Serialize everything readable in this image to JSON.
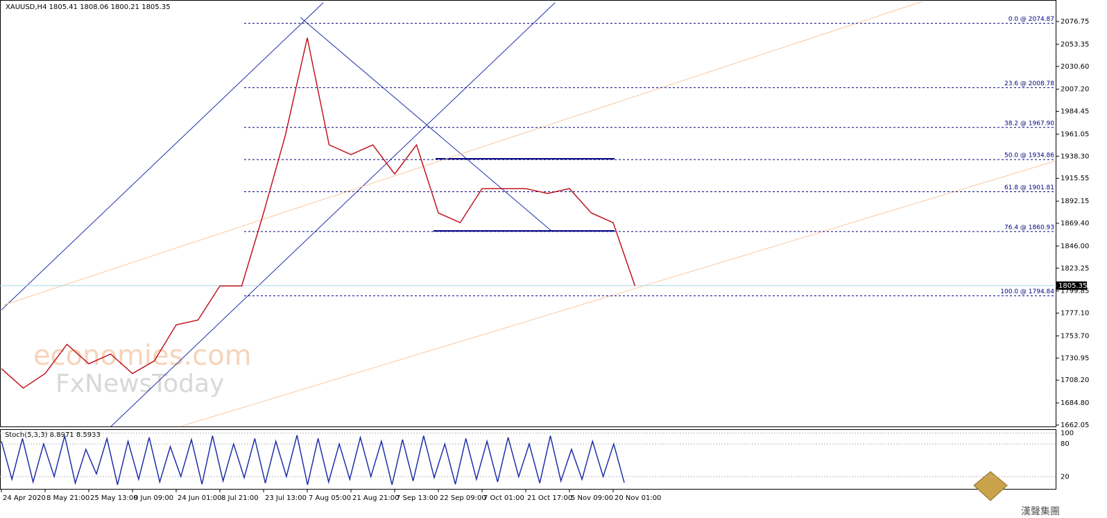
{
  "chart_data": [
    {
      "type": "line",
      "title": "XAUUSD,H4  1805.41 1808.06 1800.21 1805.35",
      "categories": [
        "24 Apr 2020",
        null,
        "8 May 21:00",
        null,
        "25 May 13:00",
        null,
        "9 Jun 09:00",
        null,
        "24 Jun 01:00",
        null,
        "8 Jul 21:00",
        null,
        "23 Jul 13:00",
        null,
        "7 Aug 05:00",
        null,
        "21 Aug 21:00",
        null,
        "7 Sep 13:00",
        null,
        "22 Sep 09:00",
        null,
        "7 Oct 01:00",
        null,
        "21 Oct 17:00",
        null,
        "5 Nov 09:00",
        null,
        "20 Nov 01:00",
        null
      ],
      "values": [
        1720,
        1700,
        1715,
        1745,
        1725,
        1735,
        1715,
        1728,
        1765,
        1770,
        1805,
        1805,
        1880,
        1960,
        2060,
        1950,
        1940,
        1950,
        1920,
        1950,
        1880,
        1870,
        1905,
        1905,
        1905,
        1900,
        1905,
        1880,
        1870,
        1805
      ],
      "color": "#c0141e",
      "ylim": [
        1660.6,
        2096.0
      ],
      "yticks": [
        2076.75,
        2053.35,
        {
          "value": 2030.6,
          "label": "2030.60"
        },
        {
          "value": 2007.2,
          "label": "2007.20"
        },
        1984.45,
        1961.05,
        {
          "value": 1938.3,
          "label": "1938.30"
        },
        1915.55,
        1892.15,
        {
          "value": 1869.4,
          "label": "1869.40"
        },
        {
          "value": 1846.0,
          "label": "1846.00"
        },
        1823.25,
        1799.85,
        {
          "value": 1777.1,
          "label": "1777.10"
        },
        {
          "value": 1753.7,
          "label": "1753.70"
        },
        1730.95,
        {
          "value": 1708.2,
          "label": "1708.20"
        },
        {
          "value": 1684.8,
          "label": "1684.80"
        },
        1662.05
      ],
      "fib_levels": [
        {
          "label": "0.0 @ 2074.87",
          "value": 2074.87
        },
        {
          "label": "23.6 @ 2008.78",
          "value": 2008.78
        },
        {
          "label": "38.2 @ 1967.90",
          "value": 1967.9
        },
        {
          "label": "50.0 @ 1934.86",
          "value": 1934.86
        },
        {
          "label": "61.8 @ 1901.81",
          "value": 1901.81
        },
        {
          "label": "76.4 @ 1860.93",
          "value": 1860.93
        },
        {
          "label": "100.0 @ 1794.84",
          "value": 1794.84
        }
      ],
      "current_price": 1805.35
    },
    {
      "type": "line",
      "title": "Stoch(5,3,3) 8.8971 8.5933",
      "values": [
        85,
        15,
        90,
        10,
        80,
        20,
        95,
        8,
        70,
        25,
        90,
        5,
        85,
        15,
        92,
        10,
        75,
        20,
        88,
        6,
        95,
        12,
        80,
        18,
        90,
        8,
        85,
        20,
        96,
        5,
        90,
        10,
        80,
        15,
        92,
        20,
        85,
        5,
        88,
        12,
        95,
        18,
        80,
        6,
        90,
        15,
        85,
        10,
        92,
        20,
        80,
        8,
        95,
        12,
        70,
        15,
        85,
        20,
        80,
        9
      ],
      "color": "#1f2fa8",
      "ylim": [
        0,
        107
      ],
      "yticks": [
        100,
        80,
        20
      ]
    }
  ],
  "watermarks": [
    "economies.com",
    "FxNewsToday"
  ],
  "logo": "漢聲集團"
}
